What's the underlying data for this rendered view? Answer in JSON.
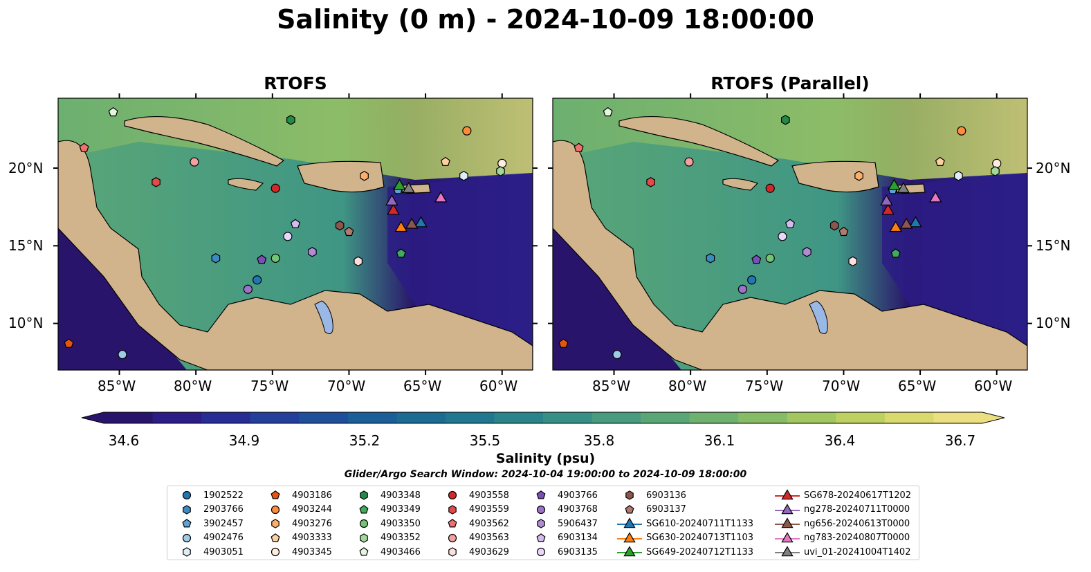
{
  "title": "Salinity (0 m) - 2024-10-09 18:00:00",
  "panels": [
    {
      "title": "RTOFS"
    },
    {
      "title": "RTOFS (Parallel)"
    }
  ],
  "axes": {
    "lat_ticks": [
      "10°N",
      "15°N",
      "20°N"
    ],
    "lon_ticks": [
      "85°W",
      "80°W",
      "75°W",
      "70°W",
      "65°W",
      "60°W"
    ]
  },
  "colorbar": {
    "label": "Salinity (psu)",
    "min": 34.6,
    "max": 36.7,
    "tick_labels": [
      "34.6",
      "34.9",
      "35.2",
      "35.5",
      "35.8",
      "36.1",
      "36.4",
      "36.7"
    ],
    "colors": [
      "#29146b",
      "#2c1c85",
      "#282c95",
      "#233e9b",
      "#1f4f9a",
      "#1c5e97",
      "#1b6b93",
      "#1f788f",
      "#2a848b",
      "#388f86",
      "#489b7f",
      "#5aa677",
      "#6fb16f",
      "#87bc66",
      "#a2c660",
      "#bfd063",
      "#d9d96e",
      "#ecdf82"
    ],
    "cmap_name": "haline"
  },
  "search_window": "Glider/Argo Search Window: 2024-10-04 19:00:00 to 2024-10-09 18:00:00",
  "legend": {
    "columns": [
      [
        {
          "label": "1902522",
          "marker": "circle",
          "color": "#1f77b4"
        },
        {
          "label": "2903766",
          "marker": "hexagon",
          "color": "#3b8bc2"
        },
        {
          "label": "3902457",
          "marker": "pentagon",
          "color": "#5fa2d6"
        },
        {
          "label": "4902476",
          "marker": "circle",
          "color": "#9ecae9"
        },
        {
          "label": "4903051",
          "marker": "hexagon",
          "color": "#deeef9"
        }
      ],
      [
        {
          "label": "4903186",
          "marker": "pentagon",
          "color": "#e6550d"
        },
        {
          "label": "4903244",
          "marker": "circle",
          "color": "#fd8d3c"
        },
        {
          "label": "4903276",
          "marker": "hexagon",
          "color": "#fdae6b"
        },
        {
          "label": "4903333",
          "marker": "pentagon",
          "color": "#fdd0a2"
        },
        {
          "label": "4903345",
          "marker": "circle",
          "color": "#feedde"
        }
      ],
      [
        {
          "label": "4903348",
          "marker": "hexagon",
          "color": "#238b45"
        },
        {
          "label": "4903349",
          "marker": "pentagon",
          "color": "#41ab5d"
        },
        {
          "label": "4903350",
          "marker": "circle",
          "color": "#74c476"
        },
        {
          "label": "4903352",
          "marker": "hexagon",
          "color": "#a1d99b"
        },
        {
          "label": "4903466",
          "marker": "pentagon",
          "color": "#e5f5e0"
        }
      ],
      [
        {
          "label": "4903558",
          "marker": "circle",
          "color": "#d62728"
        },
        {
          "label": "4903559",
          "marker": "hexagon",
          "color": "#e34a4a"
        },
        {
          "label": "4903562",
          "marker": "pentagon",
          "color": "#f07070"
        },
        {
          "label": "4903563",
          "marker": "circle",
          "color": "#f5a0a0"
        },
        {
          "label": "4903629",
          "marker": "hexagon",
          "color": "#fde0dd"
        }
      ],
      [
        {
          "label": "4903766",
          "marker": "pentagon",
          "color": "#7b4fb8"
        },
        {
          "label": "4903768",
          "marker": "circle",
          "color": "#9e72c9"
        },
        {
          "label": "5906437",
          "marker": "hexagon",
          "color": "#b28bd6"
        },
        {
          "label": "6903134",
          "marker": "pentagon",
          "color": "#d4bbee"
        },
        {
          "label": "6903135",
          "marker": "circle",
          "color": "#ead6fb"
        }
      ],
      [
        {
          "label": "6903136",
          "marker": "hexagon",
          "color": "#8c564b"
        },
        {
          "label": "6903137",
          "marker": "pentagon",
          "color": "#b07a6e"
        },
        {
          "label": "SG610-20240711T1133",
          "marker": "triangle",
          "color": "#1f77b4"
        },
        {
          "label": "SG630-20240713T1103",
          "marker": "triangle",
          "color": "#ff7f0e"
        },
        {
          "label": "SG649-20240712T1133",
          "marker": "triangle",
          "color": "#2ca02c"
        }
      ],
      [
        {
          "label": "SG678-20240617T1202",
          "marker": "triangle",
          "color": "#d62728"
        },
        {
          "label": "ng278-20240711T0000",
          "marker": "triangle",
          "color": "#9467bd"
        },
        {
          "label": "ng656-20240613T0000",
          "marker": "triangle",
          "color": "#8c564b"
        },
        {
          "label": "ng783-20240807T0000",
          "marker": "triangle",
          "color": "#e377c2"
        },
        {
          "label": "uvi_01-20241004T1402",
          "marker": "triangle",
          "color": "#7f7f7f"
        }
      ]
    ]
  },
  "observations": [
    {
      "id": "1902522",
      "lon": -76.0,
      "lat": 12.8
    },
    {
      "id": "2903766",
      "lon": -78.7,
      "lat": 14.2
    },
    {
      "id": "3902457",
      "lon": -66.8,
      "lat": 18.6
    },
    {
      "id": "4902476",
      "lon": -84.8,
      "lat": 8.0
    },
    {
      "id": "4903051",
      "lon": -62.5,
      "lat": 19.5
    },
    {
      "id": "4903186",
      "lon": -88.3,
      "lat": 8.7
    },
    {
      "id": "4903244",
      "lon": -62.3,
      "lat": 22.4
    },
    {
      "id": "4903276",
      "lon": -69.0,
      "lat": 19.5
    },
    {
      "id": "4903333",
      "lon": -63.7,
      "lat": 20.4
    },
    {
      "id": "4903345",
      "lon": -60.0,
      "lat": 20.3
    },
    {
      "id": "4903348",
      "lon": -73.8,
      "lat": 23.1
    },
    {
      "id": "4903349",
      "lon": -66.6,
      "lat": 14.5
    },
    {
      "id": "4903350",
      "lon": -74.8,
      "lat": 14.2
    },
    {
      "id": "4903352",
      "lon": -60.1,
      "lat": 19.8
    },
    {
      "id": "4903466",
      "lon": -85.4,
      "lat": 23.6
    },
    {
      "id": "4903558",
      "lon": -74.8,
      "lat": 18.7
    },
    {
      "id": "4903559",
      "lon": -82.6,
      "lat": 19.1
    },
    {
      "id": "4903562",
      "lon": -87.3,
      "lat": 21.3
    },
    {
      "id": "4903563",
      "lon": -80.1,
      "lat": 20.4
    },
    {
      "id": "4903629",
      "lon": -69.4,
      "lat": 14.0
    },
    {
      "id": "4903766",
      "lon": -75.7,
      "lat": 14.1
    },
    {
      "id": "4903768",
      "lon": -76.6,
      "lat": 12.2
    },
    {
      "id": "5906437",
      "lon": -72.4,
      "lat": 14.6
    },
    {
      "id": "6903134",
      "lon": -73.5,
      "lat": 16.4
    },
    {
      "id": "6903135",
      "lon": -74.0,
      "lat": 15.6
    },
    {
      "id": "6903136",
      "lon": -70.6,
      "lat": 16.3
    },
    {
      "id": "6903137",
      "lon": -70.0,
      "lat": 15.9
    },
    {
      "id": "SG610-20240711T1133",
      "lon": -65.3,
      "lat": 16.5
    },
    {
      "id": "SG630-20240713T1103",
      "lon": -66.6,
      "lat": 16.2
    },
    {
      "id": "SG649-20240712T1133",
      "lon": -66.7,
      "lat": 18.9
    },
    {
      "id": "SG678-20240617T1202",
      "lon": -67.1,
      "lat": 17.3
    },
    {
      "id": "ng278-20240711T0000",
      "lon": -67.2,
      "lat": 17.9
    },
    {
      "id": "ng656-20240613T0000",
      "lon": -65.9,
      "lat": 16.4
    },
    {
      "id": "ng783-20240807T0000",
      "lon": -64.0,
      "lat": 18.1
    },
    {
      "id": "uvi_01-20241004T1402",
      "lon": -66.1,
      "lat": 18.7
    }
  ]
}
